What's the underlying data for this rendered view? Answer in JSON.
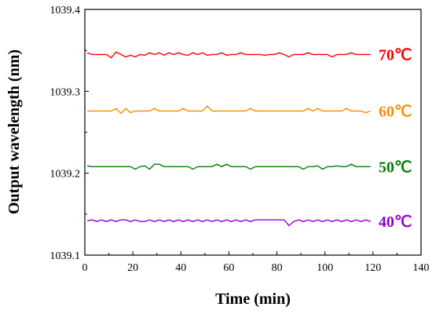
{
  "chart_data": {
    "type": "line",
    "xlabel": "Time (min)",
    "ylabel": "Output wavelength (nm)",
    "xlim": [
      0,
      140
    ],
    "ylim": [
      1039.1,
      1039.4
    ],
    "xticks": [
      0,
      20,
      40,
      60,
      80,
      100,
      120,
      140
    ],
    "yticks": [
      "1039.1",
      "1039.2",
      "1039.3",
      "1039.4"
    ],
    "grid": false,
    "legend": "none",
    "x": [
      1,
      3,
      5,
      7,
      9,
      11,
      13,
      15,
      17,
      19,
      21,
      23,
      25,
      27,
      29,
      31,
      33,
      35,
      37,
      39,
      41,
      43,
      45,
      47,
      49,
      51,
      53,
      55,
      57,
      59,
      61,
      63,
      65,
      67,
      69,
      71,
      73,
      75,
      77,
      79,
      81,
      83,
      85,
      87,
      89,
      91,
      93,
      95,
      97,
      99,
      101,
      103,
      105,
      107,
      109,
      111,
      113,
      115,
      117,
      119
    ],
    "series": [
      {
        "name": "70℃",
        "color": "#ff0000",
        "values": [
          1039.347,
          1039.345,
          1039.345,
          1039.345,
          1039.345,
          1039.341,
          1039.348,
          1039.345,
          1039.342,
          1039.344,
          1039.342,
          1039.345,
          1039.344,
          1039.347,
          1039.345,
          1039.347,
          1039.344,
          1039.347,
          1039.345,
          1039.347,
          1039.345,
          1039.344,
          1039.347,
          1039.345,
          1039.347,
          1039.344,
          1039.345,
          1039.345,
          1039.347,
          1039.344,
          1039.345,
          1039.345,
          1039.347,
          1039.345,
          1039.345,
          1039.345,
          1039.345,
          1039.344,
          1039.345,
          1039.345,
          1039.347,
          1039.345,
          1039.342,
          1039.345,
          1039.345,
          1039.345,
          1039.347,
          1039.345,
          1039.345,
          1039.345,
          1039.345,
          1039.342,
          1039.345,
          1039.345,
          1039.345,
          1039.347,
          1039.345,
          1039.345,
          1039.345,
          1039.345
        ]
      },
      {
        "name": "60℃",
        "color": "#ff8c00",
        "values": [
          1039.276,
          1039.276,
          1039.276,
          1039.276,
          1039.276,
          1039.276,
          1039.279,
          1039.273,
          1039.279,
          1039.274,
          1039.276,
          1039.276,
          1039.276,
          1039.276,
          1039.279,
          1039.276,
          1039.276,
          1039.276,
          1039.276,
          1039.276,
          1039.279,
          1039.276,
          1039.276,
          1039.276,
          1039.276,
          1039.282,
          1039.276,
          1039.276,
          1039.276,
          1039.276,
          1039.276,
          1039.276,
          1039.276,
          1039.276,
          1039.279,
          1039.276,
          1039.276,
          1039.276,
          1039.276,
          1039.276,
          1039.276,
          1039.276,
          1039.276,
          1039.276,
          1039.276,
          1039.276,
          1039.279,
          1039.276,
          1039.279,
          1039.276,
          1039.276,
          1039.276,
          1039.276,
          1039.276,
          1039.279,
          1039.276,
          1039.276,
          1039.276,
          1039.274,
          1039.276
        ]
      },
      {
        "name": "50℃",
        "color": "#008000",
        "values": [
          1039.209,
          1039.208,
          1039.208,
          1039.208,
          1039.208,
          1039.208,
          1039.208,
          1039.208,
          1039.208,
          1039.208,
          1039.205,
          1039.208,
          1039.209,
          1039.205,
          1039.211,
          1039.211,
          1039.208,
          1039.208,
          1039.208,
          1039.208,
          1039.208,
          1039.208,
          1039.205,
          1039.208,
          1039.208,
          1039.208,
          1039.208,
          1039.211,
          1039.208,
          1039.211,
          1039.208,
          1039.208,
          1039.208,
          1039.208,
          1039.205,
          1039.208,
          1039.208,
          1039.208,
          1039.208,
          1039.208,
          1039.208,
          1039.208,
          1039.208,
          1039.208,
          1039.208,
          1039.205,
          1039.208,
          1039.208,
          1039.209,
          1039.205,
          1039.208,
          1039.208,
          1039.209,
          1039.208,
          1039.208,
          1039.211,
          1039.208,
          1039.208,
          1039.208,
          1039.208
        ]
      },
      {
        "name": "40℃",
        "color": "#9400d3",
        "values": [
          1039.142,
          1039.143,
          1039.141,
          1039.143,
          1039.141,
          1039.143,
          1039.141,
          1039.143,
          1039.143,
          1039.141,
          1039.143,
          1039.141,
          1039.141,
          1039.143,
          1039.141,
          1039.143,
          1039.141,
          1039.143,
          1039.141,
          1039.143,
          1039.141,
          1039.143,
          1039.141,
          1039.143,
          1039.141,
          1039.143,
          1039.141,
          1039.143,
          1039.141,
          1039.143,
          1039.141,
          1039.143,
          1039.141,
          1039.143,
          1039.141,
          1039.143,
          1039.143,
          1039.143,
          1039.143,
          1039.143,
          1039.143,
          1039.143,
          1039.136,
          1039.141,
          1039.143,
          1039.141,
          1039.143,
          1039.141,
          1039.143,
          1039.141,
          1039.143,
          1039.141,
          1039.143,
          1039.141,
          1039.143,
          1039.141,
          1039.143,
          1039.141,
          1039.143,
          1039.141
        ]
      }
    ]
  }
}
